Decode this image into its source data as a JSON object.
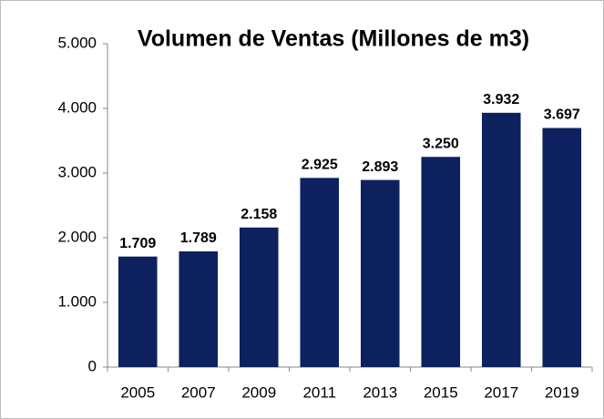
{
  "chart_data": {
    "type": "bar",
    "title": "Volumen  de Ventas (Millones de m3)",
    "categories": [
      "2005",
      "2007",
      "2009",
      "2011",
      "2013",
      "2015",
      "2017",
      "2019"
    ],
    "values": [
      1709,
      1789,
      2158,
      2925,
      2893,
      3250,
      3932,
      3697
    ],
    "value_labels": [
      "1.709",
      "1.789",
      "2.158",
      "2.925",
      "2.893",
      "3.250",
      "3.932",
      "3.697"
    ],
    "color": "#0d215e",
    "ylim": [
      0,
      5000
    ],
    "yticks": [
      0,
      {
        "value": 1000,
        "label": "1.000"
      },
      {
        "value": 2000,
        "label": "2.000"
      },
      {
        "value": 3000,
        "label": "3.000"
      },
      {
        "value": 4000,
        "label": "4.000"
      },
      {
        "value": 5000,
        "label": "5.000"
      }
    ],
    "grid": false
  }
}
